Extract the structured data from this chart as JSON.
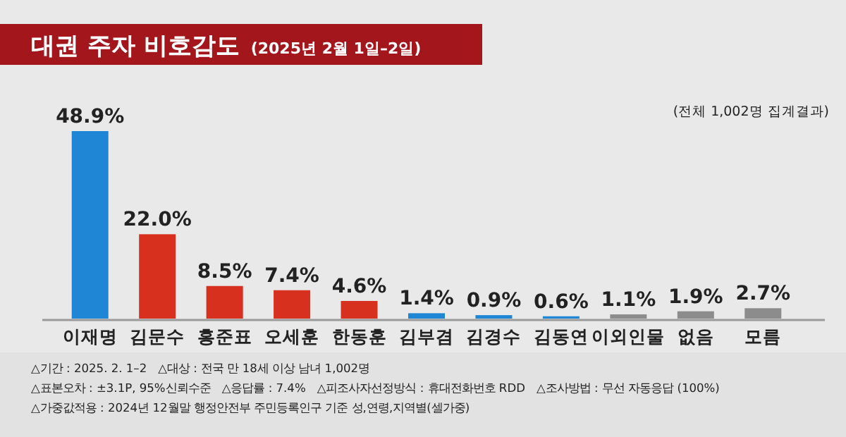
{
  "chart_data": {
    "type": "bar",
    "title": "대권 주자 비호감도",
    "subtitle": "(2025년 2월 1일–2일)",
    "categories": [
      "이재명",
      "김문수",
      "홍준표",
      "오세훈",
      "한동훈",
      "김부겸",
      "김경수",
      "김동연",
      "이외인물",
      "없음",
      "모름"
    ],
    "values": [
      48.9,
      22.0,
      8.5,
      7.4,
      4.6,
      1.4,
      0.9,
      0.6,
      1.1,
      1.9,
      2.7
    ],
    "value_labels": [
      "48.9%",
      "22.0%",
      "8.5%",
      "7.4%",
      "4.6%",
      "1.4%",
      "0.9%",
      "0.6%",
      "1.1%",
      "1.9%",
      "2.7%"
    ],
    "colors": [
      "#1f86d6",
      "#d8301f",
      "#d8301f",
      "#d8301f",
      "#d8301f",
      "#1f86d6",
      "#1f86d6",
      "#1f86d6",
      "#8c8c8c",
      "#8c8c8c",
      "#8c8c8c"
    ],
    "annotations": [
      "(전체 1,002명 집계결과)",
      "△기간 : 2025. 2. 1–2　△대상 : 전국 만 18세 이상 남녀 1,002명",
      "△표본오차 : ±3.1P, 95%신뢰수준　△응답률 : 7.4%　△피조사자선정방식 : 휴대전화번호 RDD　△조사방법 : 무선 자동응답 (100%)",
      "△가중값적용 : 2024년 12월말 행정안전부 주민등록인구 기준 성,연령,지역별(셀가중)"
    ]
  }
}
